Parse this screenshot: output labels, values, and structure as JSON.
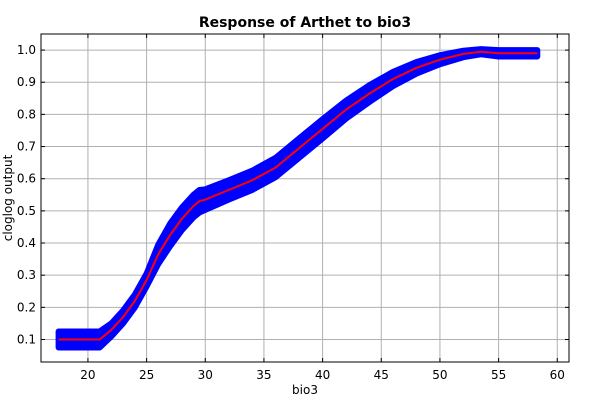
{
  "chart_data": {
    "type": "line",
    "title": "Response of Arthet to bio3",
    "xlabel": "bio3",
    "ylabel": "cloglog output",
    "xlim": [
      16,
      61
    ],
    "ylim": [
      0.03,
      1.05
    ],
    "xticks": [
      20,
      25,
      30,
      35,
      40,
      45,
      50,
      55,
      60
    ],
    "yticks": [
      0.1,
      0.2,
      0.3,
      0.4,
      0.5,
      0.6,
      0.7,
      0.8,
      0.9,
      1.0
    ],
    "grid": true,
    "band_color": "#0000ff",
    "line_color": "#ff0000",
    "series": [
      {
        "x": [
          17.5,
          21.0,
          22.0,
          23.0,
          24.0,
          25.0,
          26.0,
          27.0,
          28.0,
          29.0,
          29.5,
          30.0,
          32.0,
          34.0,
          36.0,
          38.0,
          40.0,
          42.0,
          44.0,
          46.0,
          48.0,
          50.0,
          52.0,
          53.5,
          55.0,
          58.3
        ],
        "y": [
          0.1,
          0.1,
          0.13,
          0.17,
          0.22,
          0.285,
          0.365,
          0.425,
          0.475,
          0.515,
          0.53,
          0.535,
          0.565,
          0.595,
          0.635,
          0.695,
          0.755,
          0.815,
          0.865,
          0.91,
          0.945,
          0.97,
          0.988,
          0.995,
          0.99,
          0.99
        ],
        "band": [
          0.025,
          0.025,
          0.02,
          0.02,
          0.02,
          0.02,
          0.03,
          0.035,
          0.035,
          0.035,
          0.035,
          0.032,
          0.03,
          0.03,
          0.03,
          0.03,
          0.03,
          0.028,
          0.026,
          0.022,
          0.018,
          0.014,
          0.01,
          0.008,
          0.01,
          0.01
        ]
      }
    ]
  }
}
